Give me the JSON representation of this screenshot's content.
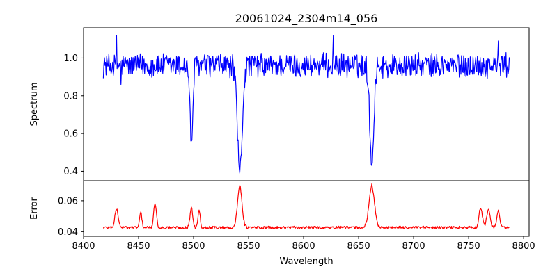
{
  "chart_data": [
    {
      "type": "line",
      "panel": "spectrum",
      "title": "20061024_2304m14_056",
      "xlabel": "",
      "ylabel": "Spectrum",
      "xlim": [
        8400,
        8805
      ],
      "ylim": [
        0.35,
        1.16
      ],
      "yticks": [
        0.4,
        0.6,
        0.8,
        1.0
      ],
      "ytick_labels": [
        "0.4",
        "0.6",
        "0.8",
        "1.0"
      ],
      "grid": false,
      "series": [
        {
          "color": "#0000ff",
          "x_range": [
            8418,
            8787
          ],
          "continuum": 0.96,
          "noise_amplitude": 0.06,
          "features": [
            {
              "kind": "absorption",
              "center": 8498,
              "depth": 0.41,
              "width": 1.3
            },
            {
              "kind": "absorption",
              "center": 8542,
              "depth": 0.57,
              "width": 2.2
            },
            {
              "kind": "absorption",
              "center": 8662,
              "depth": 0.53,
              "width": 1.8
            }
          ],
          "key_points": [
            {
              "x": 8430,
              "y": 1.12
            },
            {
              "x": 8434,
              "y": 0.86
            },
            {
              "x": 8498,
              "y": 0.56
            },
            {
              "x": 8542,
              "y": 0.39
            },
            {
              "x": 8627,
              "y": 1.12
            },
            {
              "x": 8662,
              "y": 0.43
            },
            {
              "x": 8777,
              "y": 1.09
            }
          ]
        }
      ]
    },
    {
      "type": "line",
      "panel": "error",
      "title": "",
      "xlabel": "Wavelength",
      "ylabel": "Error",
      "xlim": [
        8400,
        8805
      ],
      "ylim": [
        0.037,
        0.073
      ],
      "xticks": [
        8400,
        8450,
        8500,
        8550,
        8600,
        8650,
        8700,
        8750,
        8800
      ],
      "xtick_labels": [
        "8400",
        "8450",
        "8500",
        "8550",
        "8600",
        "8650",
        "8700",
        "8750",
        "8800"
      ],
      "yticks": [
        0.04,
        0.06
      ],
      "ytick_labels": [
        "0.04",
        "0.06"
      ],
      "grid": false,
      "series": [
        {
          "color": "#ff0000",
          "x_range": [
            8418,
            8787
          ],
          "baseline": 0.0425,
          "noise_amplitude": 0.0018,
          "features": [
            {
              "kind": "peak",
              "center": 8430,
              "height": 0.012,
              "width": 1.5
            },
            {
              "kind": "peak",
              "center": 8452,
              "height": 0.01,
              "width": 1.0
            },
            {
              "kind": "peak",
              "center": 8465,
              "height": 0.016,
              "width": 1.2
            },
            {
              "kind": "peak",
              "center": 8498,
              "height": 0.013,
              "width": 1.2
            },
            {
              "kind": "peak",
              "center": 8505,
              "height": 0.012,
              "width": 1.0
            },
            {
              "kind": "peak",
              "center": 8542,
              "height": 0.027,
              "width": 2.0
            },
            {
              "kind": "peak",
              "center": 8662,
              "height": 0.026,
              "width": 2.5
            },
            {
              "kind": "peak",
              "center": 8761,
              "height": 0.013,
              "width": 1.5
            },
            {
              "kind": "peak",
              "center": 8768,
              "height": 0.012,
              "width": 1.5
            },
            {
              "kind": "peak",
              "center": 8777,
              "height": 0.011,
              "width": 1.3
            }
          ],
          "key_points": [
            {
              "x": 8542,
              "y": 0.07
            },
            {
              "x": 8662,
              "y": 0.071
            },
            {
              "x": 8465,
              "y": 0.058
            }
          ]
        }
      ]
    }
  ]
}
